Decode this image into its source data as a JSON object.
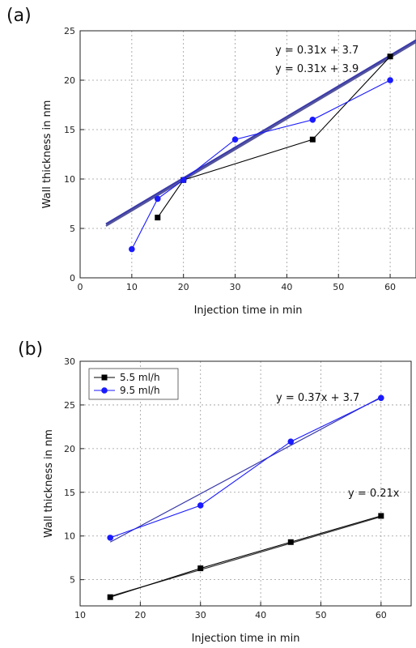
{
  "chart_data": [
    {
      "type": "line",
      "panel_label": "(a)",
      "xlabel": "Injection time in min",
      "ylabel": "Wall thickness in nm",
      "xlim": [
        0,
        65
      ],
      "ylim": [
        0,
        25
      ],
      "xticks": [
        0,
        10,
        20,
        30,
        40,
        50,
        60
      ],
      "yticks": [
        0,
        5,
        10,
        15,
        20,
        25
      ],
      "grid": true,
      "series": [
        {
          "x": [
            15,
            20,
            45,
            60
          ],
          "y": [
            6.1,
            9.9,
            14.0,
            22.4
          ],
          "color": "#000000",
          "marker": "square"
        },
        {
          "x": [
            10,
            15,
            20,
            30,
            45,
            60
          ],
          "y": [
            2.9,
            8.0,
            9.9,
            14.0,
            16.0,
            20.0
          ],
          "color": "#1a1aff",
          "marker": "circle"
        }
      ],
      "fits": [
        {
          "label": "y = 0.31x + 3.7",
          "slope": 0.31,
          "intercept": 3.7,
          "color": "#555599"
        },
        {
          "label": "y = 0.31x + 3.9",
          "slope": 0.31,
          "intercept": 3.9,
          "color": "#3a3aaa"
        }
      ]
    },
    {
      "type": "line",
      "panel_label": "(b)",
      "xlabel": "Injection time in min",
      "ylabel": "Wall thickness in nm",
      "xlim": [
        10,
        65
      ],
      "ylim": [
        2,
        30
      ],
      "xticks": [
        10,
        20,
        30,
        40,
        50,
        60
      ],
      "yticks": [
        5,
        10,
        15,
        20,
        25,
        30
      ],
      "grid": true,
      "legend_position": "top-left",
      "series": [
        {
          "name": "5.5 ml/h",
          "x": [
            15,
            30,
            45,
            60
          ],
          "y": [
            3.0,
            6.3,
            9.3,
            12.3
          ],
          "color": "#000000",
          "marker": "square"
        },
        {
          "name": "9.5 ml/h",
          "x": [
            15,
            30,
            45,
            60
          ],
          "y": [
            9.8,
            13.5,
            20.8,
            25.8
          ],
          "color": "#1a1aff",
          "marker": "circle"
        }
      ],
      "fits": [
        {
          "label": "y = 0.37x + 3.7",
          "x": [
            15,
            60
          ],
          "y": [
            9.3,
            25.9
          ],
          "color": "#3a3aaa"
        },
        {
          "label": "y = 0.21x",
          "x": [
            15,
            60
          ],
          "y": [
            3.1,
            12.2
          ],
          "color": "#333333"
        }
      ]
    }
  ]
}
